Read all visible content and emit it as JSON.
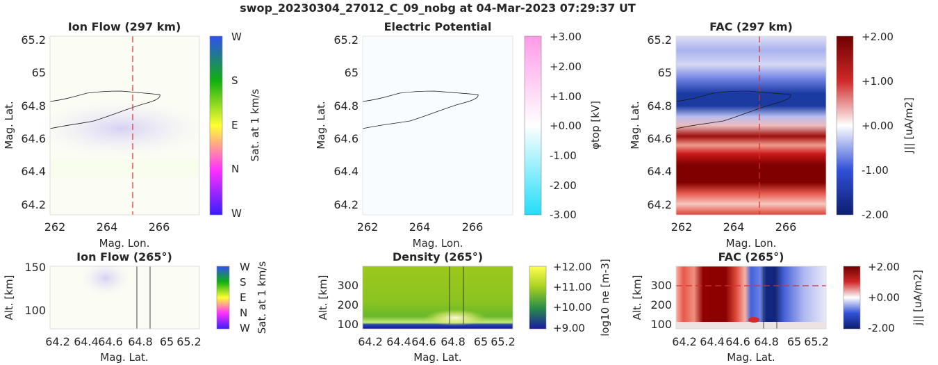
{
  "figure": {
    "title": "swop_20230304_27012_C_09_nobg at 04-Mar-2023 07:29:37 UT"
  },
  "chart_data": [
    {
      "id": "ion-flow-map",
      "type": "heatmap",
      "title": "Ion Flow (297 km)",
      "xlabel": "Mag. Lon.",
      "ylabel": "Mag. Lat.",
      "xlim": [
        261.5,
        267.5
      ],
      "ylim": [
        64.15,
        65.25
      ],
      "xticks": [
        262,
        264,
        266
      ],
      "xticklabels": [
        "262",
        "264",
        "266"
      ],
      "yticks": [
        64.2,
        64.4,
        64.6,
        64.8,
        65,
        65.2
      ],
      "yticklabels": [
        "64.2",
        "64.4",
        "64.6",
        "64.8",
        "65",
        "65.2"
      ],
      "marker_x": 265,
      "colorbar": {
        "label": "Sat. at 1 km/s",
        "ticklabels": [
          "W",
          "N",
          "E",
          "S",
          "W"
        ],
        "colors": [
          "#3a1cff",
          "#ff30ff",
          "#ffff30",
          "#10b010",
          "#3050f0"
        ]
      }
    },
    {
      "id": "potential-map",
      "type": "heatmap",
      "title": "Electric Potential",
      "xlabel": "Mag. Lon.",
      "ylabel": "Mag. Lat.",
      "xlim": [
        261.5,
        267.5
      ],
      "ylim": [
        64.15,
        65.25
      ],
      "xticks": [
        262,
        264,
        266
      ],
      "xticklabels": [
        "262",
        "264",
        "266"
      ],
      "yticks": [
        64.2,
        64.4,
        64.6,
        64.8,
        65,
        65.2
      ],
      "yticklabels": [
        "64.2",
        "64.4",
        "64.6",
        "64.8",
        "65",
        "65.2"
      ],
      "colorbar": {
        "label": "φtop [kV]",
        "range": [
          -3,
          3
        ],
        "ticklabels": [
          "+3.00",
          "+2.00",
          "+1.00",
          "+0.00",
          "-1.00",
          "-2.00",
          "-3.00"
        ],
        "colors": [
          "#ff9ae8",
          "#ffffff",
          "#22ddf8"
        ]
      }
    },
    {
      "id": "fac-map",
      "type": "heatmap",
      "title": "FAC (297 km)",
      "xlabel": "Mag. Lon.",
      "ylabel": "Mag. Lat.",
      "xlim": [
        261.5,
        267.5
      ],
      "ylim": [
        64.15,
        65.25
      ],
      "xticks": [
        262,
        264,
        266
      ],
      "xticklabels": [
        "262",
        "264",
        "266"
      ],
      "yticks": [
        64.2,
        64.4,
        64.6,
        64.8,
        65,
        65.2
      ],
      "yticklabels": [
        "64.2",
        "64.4",
        "64.6",
        "64.8",
        "65",
        "65.2"
      ],
      "marker_x": 265,
      "colorbar": {
        "label": "J|| [uA/m2]",
        "range": [
          -2,
          2
        ],
        "ticklabels": [
          "+2.00",
          "+1.00",
          "+0.00",
          "-1.00",
          "-2.00"
        ],
        "colors": [
          "#6e0000",
          "#c81e1e",
          "#ffffff",
          "#2846d2",
          "#0c1e6e"
        ]
      }
    },
    {
      "id": "ion-flow-alt",
      "type": "heatmap",
      "title": "Ion Flow (265°)",
      "xlabel": "Mag. Lat.",
      "ylabel": "Alt. [km]",
      "xlim": [
        64.1,
        65.3
      ],
      "ylim": [
        80,
        150
      ],
      "xticks": [
        64.2,
        64.4,
        64.6,
        64.8,
        65,
        65.2
      ],
      "xticklabels": [
        "64.2",
        "64.4",
        "64.6",
        "64.8",
        "65",
        "65.2"
      ],
      "yticks": [
        100,
        150
      ],
      "yticklabels": [
        "100",
        "150"
      ],
      "colorbar": {
        "label": "Sat. at 1 km/s",
        "ticklabels": [
          "W",
          "N",
          "E",
          "S",
          "W"
        ],
        "colors": [
          "#3a1cff",
          "#ff30ff",
          "#ffff30",
          "#10b010",
          "#3050f0"
        ]
      }
    },
    {
      "id": "density-alt",
      "type": "heatmap",
      "title": "Density (265°)",
      "xlabel": "Mag. Lat.",
      "ylabel": "Alt. [km]",
      "xlim": [
        64.1,
        65.3
      ],
      "ylim": [
        85,
        400
      ],
      "xticks": [
        64.2,
        64.4,
        64.6,
        64.8,
        65,
        65.2
      ],
      "xticklabels": [
        "64.2",
        "64.4",
        "64.6",
        "64.8",
        "65",
        "65.2"
      ],
      "yticks": [
        100,
        200,
        300
      ],
      "yticklabels": [
        "100",
        "200",
        "300"
      ],
      "colorbar": {
        "label": "log10 ne [m-3]",
        "range": [
          9,
          12
        ],
        "ticklabels": [
          "+12.00",
          "+11.00",
          "+10.00",
          "+9.00"
        ],
        "colors": [
          "#ffff50",
          "#a8d020",
          "#2a8f46",
          "#1a1aa0"
        ]
      }
    },
    {
      "id": "fac-alt",
      "type": "heatmap",
      "title": "FAC (265°)",
      "xlabel": "Mag. Lat.",
      "ylabel": "Alt. [km]",
      "xlim": [
        64.1,
        65.3
      ],
      "ylim": [
        85,
        400
      ],
      "xticks": [
        64.2,
        64.4,
        64.6,
        64.8,
        65,
        65.2
      ],
      "xticklabels": [
        "64.2",
        "64.4",
        "64.6",
        "64.8",
        "65",
        "65.2"
      ],
      "yticks": [
        100,
        200,
        300
      ],
      "yticklabels": [
        "100",
        "200",
        "300"
      ],
      "marker_y": 297,
      "colorbar": {
        "label": "j|| [uA/m2]",
        "range": [
          -2,
          2
        ],
        "ticklabels": [
          "+2.00",
          "+0.00",
          "-2.00"
        ],
        "colors": [
          "#6e0000",
          "#ffffff",
          "#0c1e6e"
        ]
      }
    }
  ]
}
